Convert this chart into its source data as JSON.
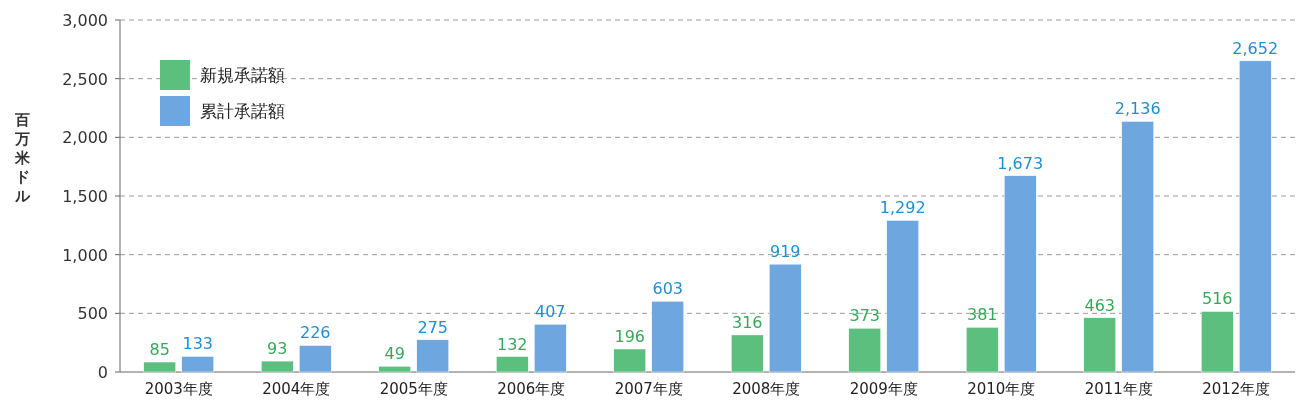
{
  "chart_data": {
    "type": "bar",
    "ylabel": "百万米ドル",
    "categories": [
      "2003年度",
      "2004年度",
      "2005年度",
      "2006年度",
      "2007年度",
      "2008年度",
      "2009年度",
      "2010年度",
      "2011年度",
      "2012年度"
    ],
    "series": [
      {
        "name": "新規承諾額",
        "color": "#5cbf7e",
        "values": [
          85,
          93,
          49,
          132,
          196,
          316,
          373,
          381,
          463,
          516
        ],
        "value_labels": [
          "85",
          "93",
          "49",
          "132",
          "196",
          "316",
          "373",
          "381",
          "463",
          "516"
        ]
      },
      {
        "name": "累計承諾額",
        "color": "#6ea6e0",
        "values": [
          133,
          226,
          275,
          407,
          603,
          919,
          1292,
          1673,
          2136,
          2652
        ],
        "value_labels": [
          "133",
          "226",
          "275",
          "407",
          "603",
          "919",
          "1,292",
          "1,673",
          "2,136",
          "2,652"
        ]
      }
    ],
    "ylim": [
      0,
      3000
    ],
    "yticks": [
      0,
      500,
      {
        "value": 1000,
        "label": "1,000"
      },
      {
        "value": 1500,
        "label": "1,500"
      },
      {
        "value": 2000,
        "label": "2,000"
      },
      {
        "value": 2500,
        "label": "2,500"
      },
      {
        "value": 3000,
        "label": "3,000"
      }
    ],
    "grid": "y",
    "legend": "top left"
  }
}
